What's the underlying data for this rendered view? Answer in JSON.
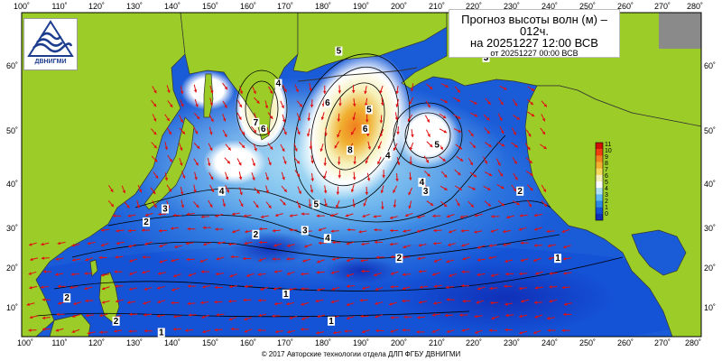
{
  "title": {
    "line1": "Прогноз высоты волн (м) –",
    "line2": "012ч.",
    "line3": "на 20251227 12:00 ВСВ",
    "line4": "от 20251227 00:00 ВСВ"
  },
  "logo": {
    "text": "ДВНИГМИ",
    "icon": "wave-logo-icon"
  },
  "copyright": "© 2017 Авторские технологии отдела ДЛП ФГБУ ДВНИГМИ",
  "lon_labels_top": [
    "100˚",
    "110˚",
    "120˚",
    "130˚",
    "140˚",
    "150˚",
    "160˚",
    "170˚",
    "180˚",
    "190˚",
    "200˚",
    "210˚",
    "220˚",
    "230˚",
    "240˚",
    "250˚",
    "260˚",
    "270˚",
    "280˚"
  ],
  "lon_labels_bottom": [
    "100˚",
    "110˚",
    "120˚",
    "130˚",
    "140˚",
    "150˚",
    "160˚",
    "170˚",
    "180˚",
    "190˚",
    "200˚",
    "210˚",
    "220˚",
    "230˚",
    "240˚",
    "250˚",
    "260˚",
    "270˚",
    "280˚"
  ],
  "lat_labels_left": [
    "60˚",
    "50˚",
    "40˚",
    "30˚",
    "20˚",
    "10˚"
  ],
  "lat_labels_right": [
    "60˚",
    "50˚",
    "40˚",
    "30˚",
    "20˚",
    "10˚"
  ],
  "colorbar": {
    "labels": [
      "11",
      "10",
      "9",
      "8",
      "7",
      "6",
      "5",
      "4",
      "3",
      "2",
      "1",
      "0"
    ],
    "colors": [
      "#d01000",
      "#f04010",
      "#f08020",
      "#f0b030",
      "#f4d860",
      "#f6f0b8",
      "#ffffff",
      "#b0e0f4",
      "#60b8f0",
      "#2c88e4",
      "#1452d6",
      "#1030b8"
    ]
  },
  "contour_labels": [
    {
      "text": "5",
      "lon": 184,
      "lat": 62
    },
    {
      "text": "4",
      "lon": 168,
      "lat": 57
    },
    {
      "text": "7",
      "lon": 162,
      "lat": 51
    },
    {
      "text": "6",
      "lon": 164,
      "lat": 50
    },
    {
      "text": "6",
      "lon": 181,
      "lat": 54
    },
    {
      "text": "8",
      "lon": 187,
      "lat": 46
    },
    {
      "text": "6",
      "lon": 191,
      "lat": 50
    },
    {
      "text": "5",
      "lon": 192,
      "lat": 53
    },
    {
      "text": "4",
      "lon": 197,
      "lat": 45
    },
    {
      "text": "5",
      "lon": 210,
      "lat": 47
    },
    {
      "text": "3",
      "lon": 223,
      "lat": 61
    },
    {
      "text": "4",
      "lon": 153,
      "lat": 38
    },
    {
      "text": "3",
      "lon": 138,
      "lat": 34
    },
    {
      "text": "2",
      "lon": 133,
      "lat": 31
    },
    {
      "text": "5",
      "lon": 178,
      "lat": 35
    },
    {
      "text": "3",
      "lon": 175,
      "lat": 29
    },
    {
      "text": "4",
      "lon": 181,
      "lat": 27
    },
    {
      "text": "2",
      "lon": 162,
      "lat": 28
    },
    {
      "text": "4",
      "lon": 206,
      "lat": 40
    },
    {
      "text": "3",
      "lon": 207,
      "lat": 38
    },
    {
      "text": "2",
      "lon": 232,
      "lat": 38
    },
    {
      "text": "2",
      "lon": 200,
      "lat": 22
    },
    {
      "text": "1",
      "lon": 242,
      "lat": 22
    },
    {
      "text": "1",
      "lon": 170,
      "lat": 13
    },
    {
      "text": "1",
      "lon": 182,
      "lat": 6
    },
    {
      "text": "2",
      "lon": 112,
      "lat": 12
    },
    {
      "text": "2",
      "lon": 125,
      "lat": 6
    },
    {
      "text": "1",
      "lon": 137,
      "lat": 3
    }
  ]
}
